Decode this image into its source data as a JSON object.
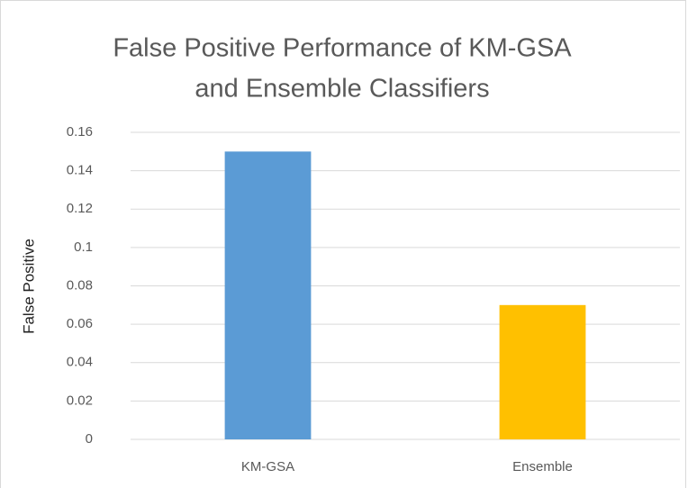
{
  "chart_data": {
    "type": "bar",
    "title": [
      "False Positive Performance of KM-GSA",
      "and Ensemble Classifiers"
    ],
    "ylabel": "False Positive",
    "categories": [
      "KM-GSA",
      "Ensemble"
    ],
    "values": [
      0.15,
      0.07
    ],
    "colors": [
      "#5b9bd5",
      "#ffc000"
    ],
    "ylim": [
      0,
      0.16
    ],
    "yticks": [
      0,
      0.02,
      0.04,
      0.06,
      0.08,
      0.1,
      0.12,
      0.14,
      0.16
    ],
    "grid": true
  }
}
